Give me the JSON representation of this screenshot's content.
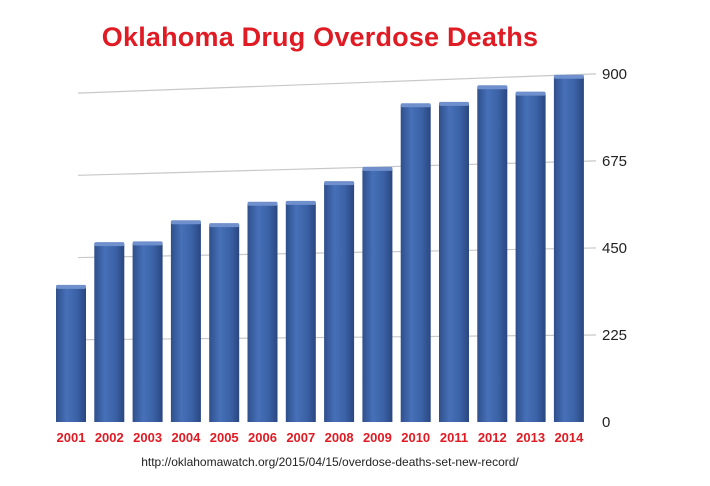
{
  "chart_data": {
    "type": "bar",
    "title": "Oklahoma Drug Overdose Deaths",
    "categories": [
      "2001",
      "2002",
      "2003",
      "2004",
      "2005",
      "2006",
      "2007",
      "2008",
      "2009",
      "2010",
      "2011",
      "2012",
      "2013",
      "2014"
    ],
    "values": [
      370,
      485,
      485,
      540,
      530,
      585,
      585,
      635,
      670,
      835,
      835,
      875,
      855,
      895
    ],
    "ylim": [
      0,
      900
    ],
    "yticks": [
      "0",
      "225",
      "450",
      "675",
      "900"
    ],
    "xlabel": "",
    "ylabel": "",
    "grid": true,
    "bar_color": "#3d64a8",
    "label_color": "#e01b24"
  },
  "source": "http://oklahomawatch.org/2015/04/15/overdose-deaths-set-new-record/"
}
